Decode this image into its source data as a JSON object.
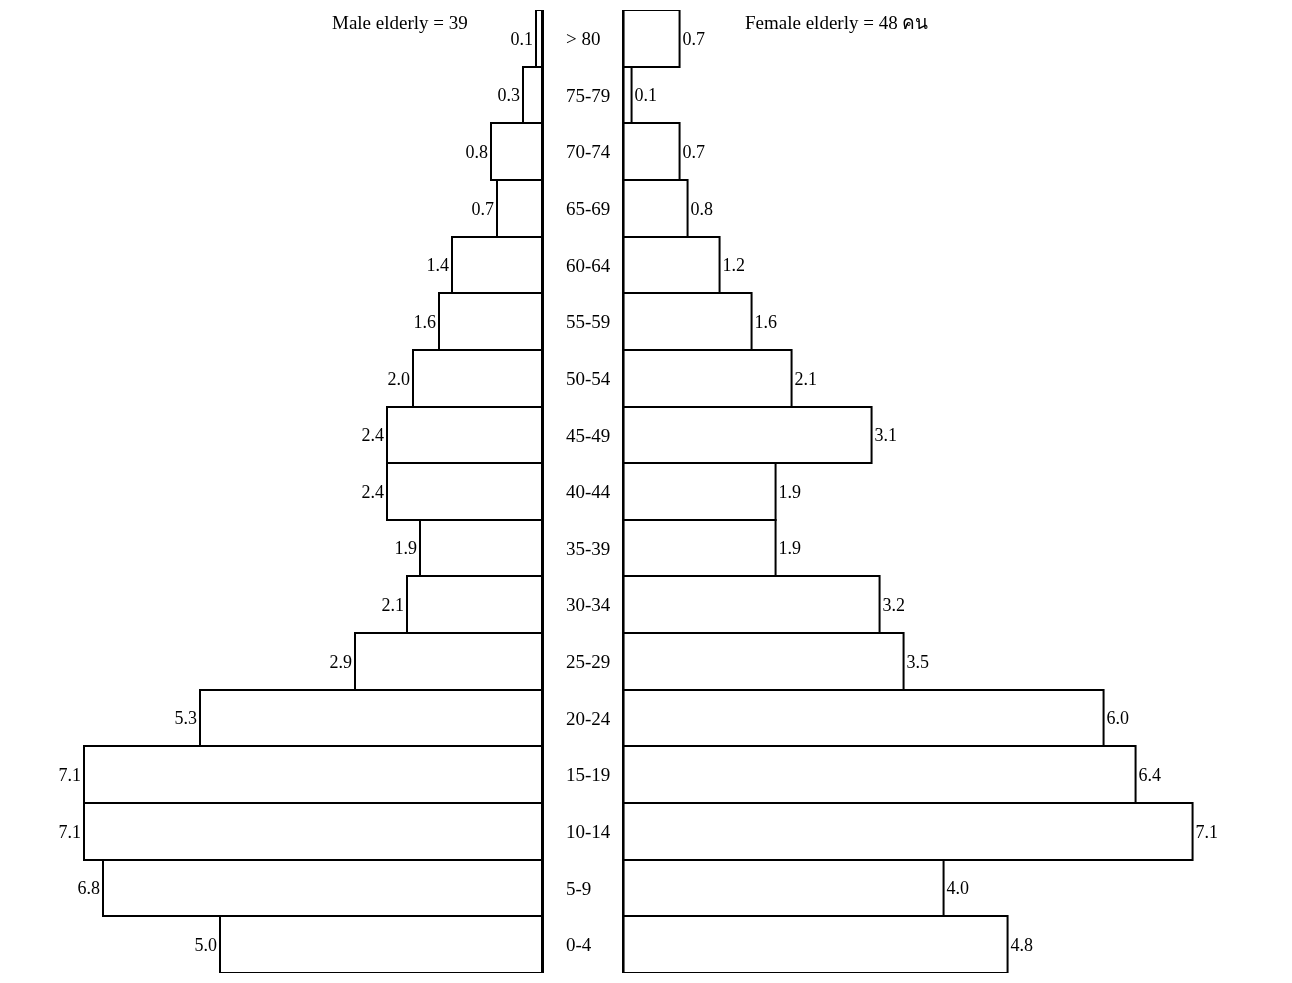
{
  "chart_data": [
    {
      "type": "bar",
      "orientation": "horizontal",
      "categories": [
        "> 80",
        "75-79",
        "70-74",
        "65-69",
        "60-64",
        "55-59",
        "50-54",
        "45-49",
        "40-44",
        "35-39",
        "30-34",
        "25-29",
        "20-24",
        "15-19",
        "10-14",
        "5-9",
        "0-4"
      ],
      "series": [
        {
          "color": "#ffffff",
          "values": [
            0.1,
            0.3,
            0.8,
            0.7,
            1.4,
            1.6,
            2.0,
            2.4,
            2.4,
            1.9,
            2.1,
            2.9,
            5.3,
            7.1,
            7.1,
            6.8,
            5.0
          ],
          "value_labels": [
            "0.1",
            "0.3",
            "0.8",
            "0.7",
            "1.4",
            "1.6",
            "2.0",
            "2.4",
            "2.4",
            "1.9",
            "2.1",
            "2.9",
            "5.3",
            "7.1",
            "7.1",
            "6.8",
            "5.0"
          ]
        }
      ],
      "tick_labels": "y",
      "annotations": [
        "Male elderly = 39"
      ]
    },
    {
      "type": "bar",
      "orientation": "horizontal",
      "categories": [
        "> 80",
        "75-79",
        "70-74",
        "65-69",
        "60-64",
        "55-59",
        "50-54",
        "45-49",
        "40-44",
        "35-39",
        "30-34",
        "25-29",
        "20-24",
        "15-19",
        "10-14",
        "5-9",
        "0-4"
      ],
      "series": [
        {
          "color": "#ffffff",
          "values": [
            0.7,
            0.1,
            0.7,
            0.8,
            1.2,
            1.6,
            2.1,
            3.1,
            1.9,
            1.9,
            3.2,
            3.5,
            6.0,
            6.4,
            7.1,
            4.0,
            4.8
          ],
          "value_labels": [
            "0.7",
            "0.1",
            "0.7",
            "0.8",
            "1.2",
            "1.6",
            "2.1",
            "3.1",
            "1.9",
            "1.9",
            "3.2",
            "3.5",
            "6.0",
            "6.4",
            "7.1",
            "4.0",
            "4.8"
          ]
        }
      ],
      "tick_labels": false,
      "annotations": [
        "Female elderly = 48 คน"
      ]
    }
  ]
}
